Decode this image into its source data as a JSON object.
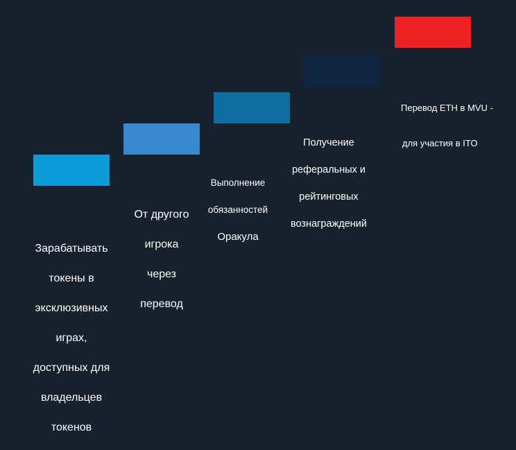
{
  "steps": [
    {
      "color": "#0d9ad8",
      "lines": [
        "Зарабатывать",
        "токены в",
        "эксклюзивных",
        "играх,",
        "доступных для",
        "владельцев",
        "токенов"
      ]
    },
    {
      "color": "#3888d0",
      "lines": [
        "От другого",
        "игрока",
        "через",
        "перевод"
      ]
    },
    {
      "color": "#0c6d9e",
      "lines": [
        "Выполнение",
        "обязанностей",
        "Оракула"
      ]
    },
    {
      "color": "#0f2641",
      "lines": [
        "Получение",
        "реферальных и",
        "рейтинговых",
        "вознаграждений"
      ]
    },
    {
      "color": "#ee2124",
      "lines": [
        "Перевод ETH в MVU -",
        "для участия в ITO"
      ]
    }
  ]
}
